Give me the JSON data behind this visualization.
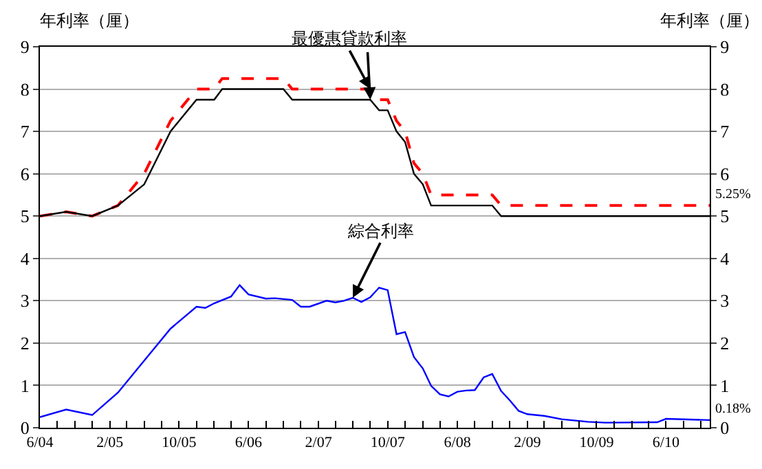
{
  "chart_data": {
    "type": "line",
    "ylabel": "年利率（厘）",
    "y2label": "年利率（厘）",
    "xlim": [
      "2004-06",
      "2010-11"
    ],
    "xticks": [
      {
        "value": "2004-06",
        "label": "6/04"
      },
      {
        "value": "2004-08",
        "label": null
      },
      {
        "value": "2004-10",
        "label": null
      },
      {
        "value": "2004-12",
        "label": null
      },
      {
        "value": "2005-02",
        "label": "2/05"
      },
      {
        "value": "2005-04",
        "label": null
      },
      {
        "value": "2005-06",
        "label": null
      },
      {
        "value": "2005-08",
        "label": null
      },
      {
        "value": "2005-10",
        "label": "10/05"
      },
      {
        "value": "2005-12",
        "label": null
      },
      {
        "value": "2006-02",
        "label": null
      },
      {
        "value": "2006-04",
        "label": null
      },
      {
        "value": "2006-06",
        "label": "6/06"
      },
      {
        "value": "2006-08",
        "label": null
      },
      {
        "value": "2006-10",
        "label": null
      },
      {
        "value": "2006-12",
        "label": null
      },
      {
        "value": "2007-02",
        "label": "2/07"
      },
      {
        "value": "2007-04",
        "label": null
      },
      {
        "value": "2007-06",
        "label": null
      },
      {
        "value": "2007-08",
        "label": null
      },
      {
        "value": "2007-10",
        "label": "10/07"
      },
      {
        "value": "2007-12",
        "label": null
      },
      {
        "value": "2008-02",
        "label": null
      },
      {
        "value": "2008-04",
        "label": null
      },
      {
        "value": "2008-06",
        "label": "6/08"
      },
      {
        "value": "2008-08",
        "label": null
      },
      {
        "value": "2008-10",
        "label": null
      },
      {
        "value": "2008-12",
        "label": null
      },
      {
        "value": "2009-02",
        "label": "2/09"
      },
      {
        "value": "2009-04",
        "label": null
      },
      {
        "value": "2009-06",
        "label": null
      },
      {
        "value": "2009-08",
        "label": null
      },
      {
        "value": "2009-10",
        "label": "10/09"
      },
      {
        "value": "2009-12",
        "label": null
      },
      {
        "value": "2010-02",
        "label": null
      },
      {
        "value": "2010-04",
        "label": null
      },
      {
        "value": "2010-06",
        "label": "6/10"
      },
      {
        "value": "2010-08",
        "label": null
      },
      {
        "value": "2010-10",
        "label": null
      }
    ],
    "ylim": [
      0,
      9
    ],
    "yticks": [
      0,
      1,
      2,
      3,
      4,
      5,
      6,
      7,
      8,
      9
    ],
    "y2lim": [
      0,
      9
    ],
    "y2ticks": [
      0,
      1,
      2,
      3,
      4,
      5,
      6,
      7,
      8,
      9
    ],
    "grid": "y",
    "marker": "none",
    "series": [
      {
        "color": "#ff0000",
        "line_style": "dashed",
        "x": [
          "2004-06",
          "2004-09",
          "2004-12",
          "2005-03",
          "2005-06",
          "2005-09",
          "2005-12",
          "2006-02",
          "2006-03",
          "2006-10",
          "2006-11",
          "2007-08",
          "2007-09",
          "2007-10",
          "2007-11",
          "2007-12",
          "2008-01",
          "2008-02",
          "2008-03",
          "2008-10",
          "2008-11",
          "2010-11"
        ],
        "values": [
          5.0,
          5.1,
          5.0,
          5.25,
          6.0,
          7.25,
          8.0,
          8.0,
          8.25,
          8.25,
          8.0,
          8.0,
          7.75,
          7.75,
          7.25,
          7.0,
          6.25,
          6.0,
          5.5,
          5.5,
          5.25,
          5.25
        ]
      },
      {
        "color": "#000000",
        "line_style": "solid",
        "x": [
          "2004-06",
          "2004-09",
          "2004-12",
          "2005-03",
          "2005-06",
          "2005-09",
          "2005-12",
          "2006-02",
          "2006-03",
          "2006-10",
          "2006-11",
          "2007-08",
          "2007-09",
          "2007-10",
          "2007-11",
          "2007-12",
          "2008-01",
          "2008-02",
          "2008-03",
          "2008-10",
          "2008-11",
          "2010-11"
        ],
        "values": [
          5.0,
          5.1,
          5.0,
          5.25,
          5.75,
          7.0,
          7.75,
          7.75,
          8.0,
          8.0,
          7.75,
          7.75,
          7.5,
          7.5,
          7.0,
          6.75,
          6.0,
          5.75,
          5.25,
          5.25,
          5.0,
          5.0
        ]
      },
      {
        "color": "#0000ff",
        "line_style": "solid",
        "x": [
          "2004-06",
          "2004-09",
          "2004-12",
          "2005-03",
          "2005-09",
          "2005-12",
          "2006-01",
          "2006-02",
          "2006-04",
          "2006-05",
          "2006-06",
          "2006-08",
          "2006-09",
          "2006-11",
          "2006-12",
          "2007-01",
          "2007-03",
          "2007-04",
          "2007-05",
          "2007-06",
          "2007-07",
          "2007-08",
          "2007-09",
          "2007-10",
          "2007-11",
          "2007-12",
          "2008-01",
          "2008-02",
          "2008-03",
          "2008-04",
          "2008-05",
          "2008-06",
          "2008-07",
          "2008-08",
          "2008-09",
          "2008-10",
          "2008-11",
          "2008-12",
          "2009-01",
          "2009-02",
          "2009-04",
          "2009-06",
          "2009-09",
          "2009-11",
          "2010-05",
          "2010-06",
          "2010-08",
          "2010-11"
        ],
        "values": [
          0.25,
          0.43,
          0.3,
          0.83,
          2.34,
          2.86,
          2.83,
          2.94,
          3.1,
          3.37,
          3.15,
          3.05,
          3.06,
          3.02,
          2.86,
          2.86,
          3.0,
          2.96,
          3.0,
          3.07,
          2.97,
          3.08,
          3.31,
          3.25,
          2.21,
          2.26,
          1.67,
          1.4,
          0.99,
          0.79,
          0.74,
          0.85,
          0.88,
          0.89,
          1.19,
          1.27,
          0.87,
          0.65,
          0.4,
          0.32,
          0.28,
          0.2,
          0.14,
          0.12,
          0.13,
          0.21,
          0.2,
          0.18
        ]
      }
    ],
    "annotations": [
      {
        "text": "最優惠貸款利率",
        "x": "2007-08",
        "y": 8.0
      },
      {
        "text": "綜合利率",
        "x": "2007-06",
        "y": 3.07
      },
      {
        "text": "5.25%",
        "x": "2010-11",
        "y": 5.25
      },
      {
        "text": "0.18%",
        "x": "2010-11",
        "y": 0.18
      }
    ]
  }
}
